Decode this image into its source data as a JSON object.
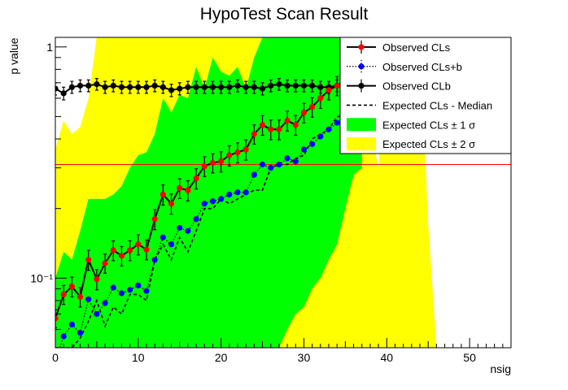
{
  "chart_data": {
    "type": "line",
    "title": "HypoTest Scan Result",
    "xlabel": "nsig",
    "ylabel": "p value",
    "xlim": [
      0,
      55
    ],
    "ylim": [
      0.05,
      1.1
    ],
    "yscale": "log",
    "grid": false,
    "legend_position": "top-right",
    "x_ticks": [
      0,
      10,
      20,
      30,
      40,
      50
    ],
    "y_tick_labels": [
      {
        "value": 1,
        "label": "1"
      },
      {
        "value": 0.1,
        "label": "10⁻¹"
      }
    ],
    "threshold_line": {
      "y": 0.31,
      "color": "#ff0000"
    },
    "colors": {
      "observed_cls": "#ff0000",
      "observed_clsb": "#0000ff",
      "observed_clb": "#000000",
      "band_1sigma": "#00ff00",
      "band_2sigma": "#ffff00"
    },
    "legend": [
      {
        "label": "Observed CLs",
        "style": "red-marker-line"
      },
      {
        "label": "Observed CLs+b",
        "style": "blue-marker-dotted"
      },
      {
        "label": "Observed CLb",
        "style": "black-marker-line"
      },
      {
        "label": "Expected CLs - Median",
        "style": "black-dashed"
      },
      {
        "label": "Expected CLs ± 1 σ",
        "style": "green-box"
      },
      {
        "label": "Expected CLs ± 2 σ",
        "style": "yellow-box"
      }
    ],
    "x": [
      0,
      1,
      2,
      3,
      4,
      5,
      6,
      7,
      8,
      9,
      10,
      11,
      12,
      13,
      14,
      15,
      16,
      17,
      18,
      19,
      20,
      21,
      22,
      23,
      24,
      25,
      26,
      27,
      28,
      29,
      30,
      31,
      32,
      33,
      34,
      35
    ],
    "series": [
      {
        "name": "Observed CLs",
        "values": [
          0.067,
          0.085,
          0.092,
          0.083,
          0.12,
          0.099,
          0.116,
          0.132,
          0.125,
          0.132,
          0.14,
          0.133,
          0.18,
          0.23,
          0.21,
          0.245,
          0.24,
          0.27,
          0.305,
          0.315,
          0.32,
          0.34,
          0.35,
          0.36,
          0.42,
          0.46,
          0.44,
          0.44,
          0.48,
          0.46,
          0.52,
          0.55,
          0.6,
          0.65,
          0.68,
          0.72
        ],
        "errors": [
          0.006,
          0.008,
          0.009,
          0.008,
          0.012,
          0.01,
          0.011,
          0.013,
          0.012,
          0.013,
          0.014,
          0.013,
          0.018,
          0.023,
          0.021,
          0.024,
          0.024,
          0.027,
          0.03,
          0.03,
          0.032,
          0.034,
          0.035,
          0.036,
          0.04,
          0.045,
          0.043,
          0.043,
          0.047,
          0.045,
          0.05,
          0.053,
          0.058,
          0.06,
          0.065,
          0.07
        ]
      },
      {
        "name": "Observed CLs+b",
        "values": [
          0.044,
          0.056,
          0.063,
          0.058,
          0.081,
          0.07,
          0.078,
          0.091,
          0.086,
          0.089,
          0.093,
          0.088,
          0.12,
          0.15,
          0.14,
          0.165,
          0.16,
          0.18,
          0.21,
          0.215,
          0.22,
          0.23,
          0.235,
          0.235,
          0.28,
          0.31,
          0.3,
          0.31,
          0.33,
          0.32,
          0.36,
          0.38,
          0.41,
          0.44,
          0.47,
          0.5
        ]
      },
      {
        "name": "Observed CLb",
        "values": [
          0.66,
          0.63,
          0.67,
          0.68,
          0.68,
          0.69,
          0.67,
          0.68,
          0.67,
          0.67,
          0.67,
          0.67,
          0.68,
          0.67,
          0.65,
          0.66,
          0.67,
          0.67,
          0.67,
          0.67,
          0.67,
          0.67,
          0.68,
          0.67,
          0.67,
          0.66,
          0.68,
          0.69,
          0.68,
          0.68,
          0.68,
          0.68,
          0.67,
          0.67,
          0.68,
          0.68
        ],
        "errors": [
          0.04,
          0.04,
          0.04,
          0.04,
          0.04,
          0.04,
          0.04,
          0.04,
          0.04,
          0.04,
          0.04,
          0.04,
          0.04,
          0.04,
          0.04,
          0.04,
          0.04,
          0.04,
          0.04,
          0.04,
          0.04,
          0.04,
          0.04,
          0.04,
          0.04,
          0.04,
          0.04,
          0.04,
          0.04,
          0.04,
          0.04,
          0.04,
          0.04,
          0.04,
          0.04,
          0.04
        ]
      },
      {
        "name": "Expected CLs - Median",
        "values": [
          0.05,
          0.05,
          0.05,
          0.055,
          0.065,
          0.08,
          0.062,
          0.075,
          0.07,
          0.085,
          0.085,
          0.08,
          0.12,
          0.14,
          0.12,
          0.15,
          0.13,
          0.16,
          0.2,
          0.2,
          0.22,
          0.21,
          0.22,
          0.23,
          0.24,
          0.24,
          0.3,
          0.31,
          0.31,
          0.33,
          0.34,
          0.4,
          0.42,
          0.44,
          0.5,
          0.5
        ]
      }
    ],
    "band_2sigma": {
      "x": [
        0,
        1,
        2,
        3,
        4,
        5,
        6,
        7,
        8,
        9,
        10,
        11,
        12,
        13,
        14,
        15,
        16,
        17,
        18,
        19,
        20,
        21,
        22,
        23,
        24,
        25,
        26,
        27,
        28,
        29,
        30,
        31,
        32,
        33,
        34,
        35,
        36,
        37,
        38,
        39,
        40,
        41,
        42,
        43,
        44,
        45,
        46,
        47,
        48,
        49,
        50
      ],
      "upper": [
        0.36,
        0.48,
        0.42,
        0.45,
        0.6,
        1.1,
        1.1,
        1.1,
        1.1,
        1.1,
        1.1,
        1.1,
        1.1,
        1.1,
        1.1,
        1.1,
        1.1,
        1.1,
        1.1,
        1.1,
        1.1,
        1.1,
        1.1,
        1.1,
        1.1,
        1.1,
        1.1,
        1.1,
        1.1,
        1.1,
        1.1,
        1.1,
        1.1,
        1.1,
        1.1,
        1.1,
        1.1,
        1.1,
        0.45,
        0.3,
        1.1,
        1.1,
        1.1,
        0.7,
        1.1,
        0.17,
        0.05,
        0.05,
        0.05,
        0.05,
        0.05
      ],
      "lower": [
        0.05,
        0.05,
        0.05,
        0.05,
        0.05,
        0.05,
        0.05,
        0.05,
        0.05,
        0.05,
        0.05,
        0.05,
        0.05,
        0.05,
        0.05,
        0.05,
        0.05,
        0.05,
        0.05,
        0.05,
        0.05,
        0.05,
        0.05,
        0.05,
        0.05,
        0.05,
        0.05,
        0.05,
        0.05,
        0.05,
        0.05,
        0.05,
        0.05,
        0.05,
        0.05,
        0.05,
        0.05,
        0.05,
        0.05,
        0.05,
        0.05,
        0.05,
        0.05,
        0.05,
        0.05,
        0.05,
        0.05,
        0.05,
        0.05,
        0.05,
        0.05
      ]
    },
    "band_1sigma": {
      "x": [
        0,
        1,
        2,
        3,
        4,
        5,
        6,
        7,
        8,
        9,
        10,
        11,
        12,
        13,
        14,
        15,
        16,
        17,
        18,
        19,
        20,
        21,
        22,
        23,
        24,
        25,
        26,
        27,
        28,
        29,
        30,
        31,
        32,
        33,
        34,
        35,
        36,
        37
      ],
      "upper": [
        0.1,
        0.13,
        0.12,
        0.16,
        0.22,
        0.22,
        0.22,
        0.23,
        0.25,
        0.3,
        0.34,
        0.35,
        0.42,
        0.6,
        0.52,
        0.62,
        0.6,
        0.82,
        0.66,
        0.9,
        0.78,
        0.75,
        0.82,
        0.66,
        0.9,
        1.1,
        1.1,
        1.1,
        1.1,
        1.1,
        1.1,
        1.1,
        1.1,
        1.1,
        1.1,
        1.1,
        1.1,
        0.55
      ],
      "lower": [
        0.05,
        0.05,
        0.05,
        0.05,
        0.05,
        0.05,
        0.05,
        0.05,
        0.05,
        0.05,
        0.05,
        0.05,
        0.05,
        0.05,
        0.05,
        0.05,
        0.05,
        0.05,
        0.05,
        0.05,
        0.05,
        0.05,
        0.05,
        0.05,
        0.05,
        0.05,
        0.05,
        0.05,
        0.06,
        0.07,
        0.075,
        0.09,
        0.1,
        0.12,
        0.14,
        0.2,
        0.28,
        0.3
      ]
    }
  }
}
